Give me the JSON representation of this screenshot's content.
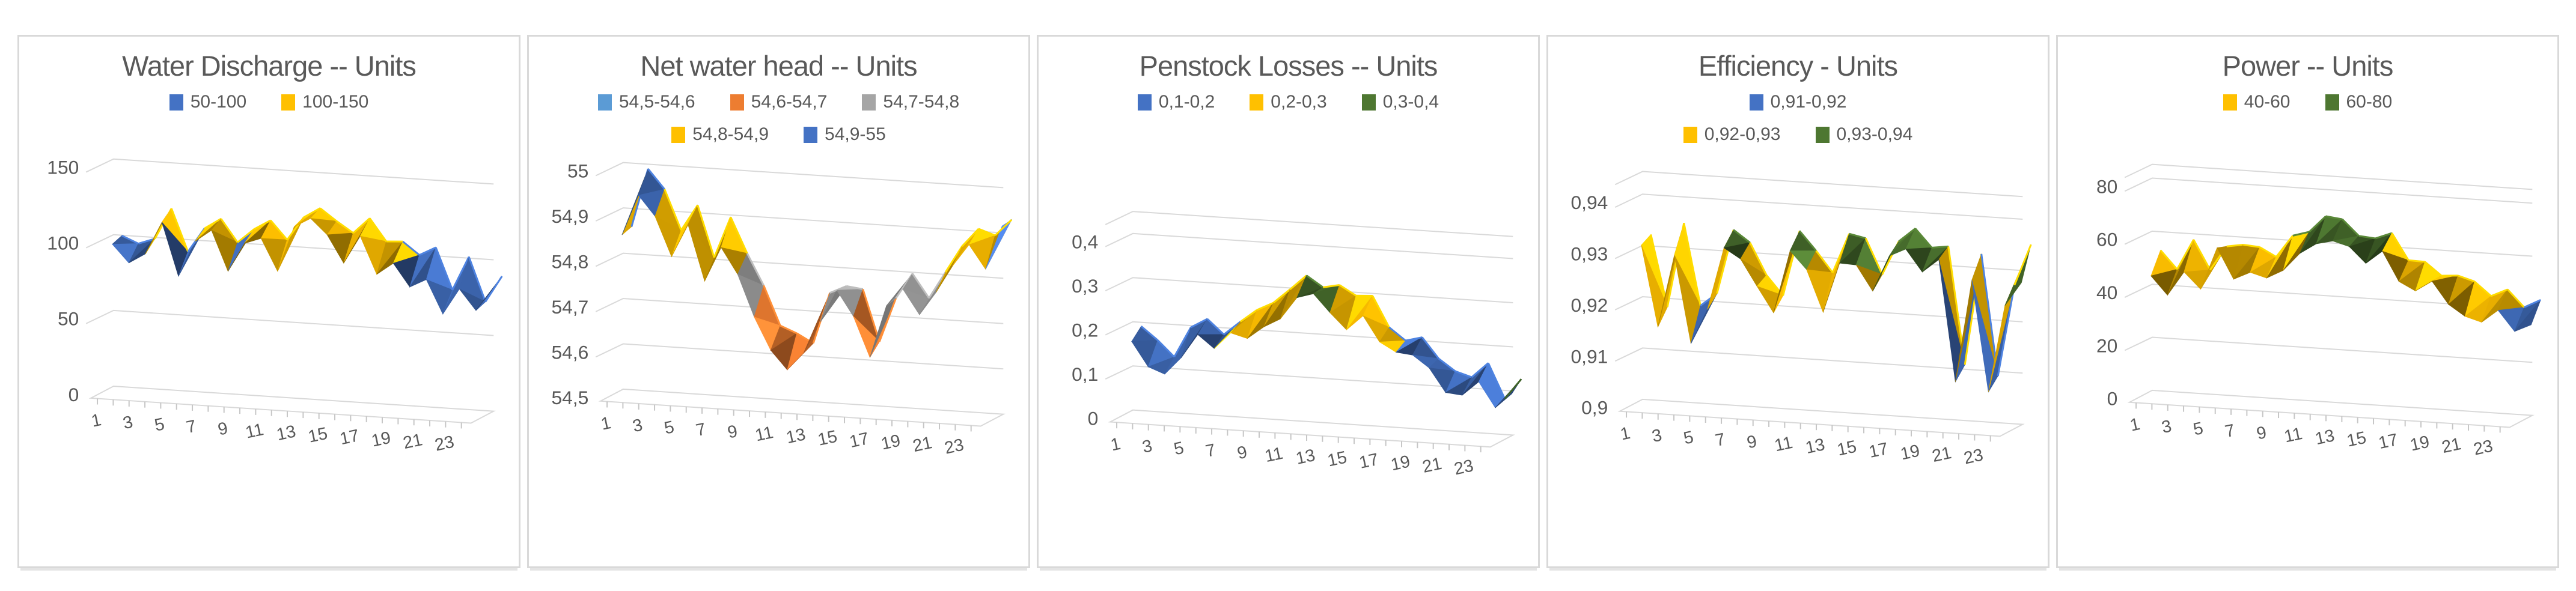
{
  "page": {
    "background": "#ffffff",
    "panel_border_color": "#d9d9d9",
    "text_color": "#595959",
    "grid_color": "#d9d9d9",
    "axis_color": "#c6c6c6"
  },
  "chart_data": [
    {
      "type": "area",
      "subtype": "3d-surface-ribbon",
      "title": "Water Discharge -- Units",
      "x": [
        1,
        2,
        3,
        4,
        5,
        6,
        7,
        8,
        9,
        10,
        11,
        12,
        13,
        14,
        15,
        16,
        17,
        18,
        19,
        20,
        21,
        22,
        23,
        24
      ],
      "x_tick_labels": [
        "1",
        "3",
        "5",
        "7",
        "9",
        "11",
        "13",
        "15",
        "17",
        "19",
        "21",
        "23"
      ],
      "values": [
        100,
        90,
        96,
        114,
        91,
        105,
        112,
        96,
        111,
        118,
        96,
        121,
        128,
        120,
        102,
        114,
        101,
        108,
        95,
        99,
        78,
        90,
        72,
        87
      ],
      "y_ticks": [
        {
          "label": "150",
          "value": 150
        },
        {
          "label": "100",
          "value": 100
        },
        {
          "label": "50",
          "value": 50
        },
        {
          "label": "0",
          "value": 0
        }
      ],
      "ylim": [
        0,
        150
      ],
      "grid": true,
      "legend_position": "top",
      "legend_rows": [
        [
          {
            "label": "50-100",
            "color": "#4472C4",
            "range": [
              50,
              100
            ]
          },
          {
            "label": "100-150",
            "color": "#FFC000",
            "range": [
              100,
              150
            ]
          }
        ]
      ],
      "hidden_bands": []
    },
    {
      "type": "area",
      "subtype": "3d-surface-ribbon",
      "title": "Net water head -- Units",
      "x": [
        1,
        2,
        3,
        4,
        5,
        6,
        7,
        8,
        9,
        10,
        11,
        12,
        13,
        14,
        15,
        16,
        17,
        18,
        19,
        20,
        21,
        22,
        23,
        24
      ],
      "x_tick_labels": [
        "1",
        "3",
        "5",
        "7",
        "9",
        "11",
        "13",
        "15",
        "17",
        "19",
        "21",
        "23"
      ],
      "values": [
        54.86,
        54.96,
        54.91,
        54.85,
        54.89,
        54.8,
        54.86,
        54.81,
        54.73,
        54.65,
        54.62,
        54.63,
        54.71,
        54.76,
        54.72,
        54.63,
        54.74,
        54.79,
        54.72,
        54.8,
        54.85,
        54.9,
        54.86,
        54.93
      ],
      "y_ticks": [
        {
          "label": "55",
          "value": 55
        },
        {
          "label": "54,9",
          "value": 54.9
        },
        {
          "label": "54,8",
          "value": 54.8
        },
        {
          "label": "54,7",
          "value": 54.7
        },
        {
          "label": "54,6",
          "value": 54.6
        },
        {
          "label": "54,5",
          "value": 54.5
        }
      ],
      "ylim": [
        54.5,
        55
      ],
      "grid": true,
      "legend_position": "top",
      "legend_rows": [
        [
          {
            "label": "54,5-54,6",
            "color": "#5B9BD5",
            "range": [
              54.5,
              54.6
            ]
          },
          {
            "label": "54,6-54,7",
            "color": "#ED7D31",
            "range": [
              54.6,
              54.7
            ]
          },
          {
            "label": "54,7-54,8",
            "color": "#A5A5A5",
            "range": [
              54.7,
              54.8
            ]
          }
        ],
        [
          {
            "label": "54,8-54,9",
            "color": "#FFC000",
            "range": [
              54.8,
              54.9
            ]
          },
          {
            "label": "54,9-55",
            "color": "#4472C4",
            "range": [
              54.9,
              55
            ]
          }
        ]
      ],
      "hidden_bands": []
    },
    {
      "type": "area",
      "subtype": "3d-surface-ribbon",
      "title": "Penstock Losses -- Units",
      "x": [
        1,
        2,
        3,
        4,
        5,
        6,
        7,
        8,
        9,
        10,
        11,
        12,
        13,
        14,
        15,
        16,
        17,
        18,
        19,
        20,
        21,
        22,
        23,
        24
      ],
      "x_tick_labels": [
        "1",
        "3",
        "5",
        "7",
        "9",
        "11",
        "13",
        "15",
        "17",
        "19",
        "21",
        "23"
      ],
      "values": [
        0.17,
        0.15,
        0.13,
        0.18,
        0.2,
        0.17,
        0.21,
        0.22,
        0.24,
        0.27,
        0.32,
        0.31,
        0.29,
        0.26,
        0.27,
        0.22,
        0.2,
        0.21,
        0.16,
        0.14,
        0.11,
        0.13,
        0.08,
        0.12
      ],
      "y_ticks": [
        {
          "label": "0,4",
          "value": 0.4
        },
        {
          "label": "0,3",
          "value": 0.3
        },
        {
          "label": "0,2",
          "value": 0.2
        },
        {
          "label": "0,1",
          "value": 0.1
        },
        {
          "label": "0",
          "value": 0
        }
      ],
      "ylim": [
        0,
        0.45
      ],
      "grid": true,
      "legend_position": "top",
      "legend_rows": [
        [
          {
            "label": "0,1-0,2",
            "color": "#4472C4",
            "range": [
              0.1,
              0.2
            ]
          },
          {
            "label": "0,2-0,3",
            "color": "#FFC000",
            "range": [
              0.2,
              0.3
            ]
          },
          {
            "label": "0,3-0,4",
            "color": "#4E7731",
            "range": [
              0.3,
              0.4
            ]
          }
        ]
      ],
      "hidden_bands": [
        {
          "color": "#375623",
          "range": [
            0,
            0.1
          ]
        }
      ]
    },
    {
      "type": "area",
      "subtype": "3d-surface-ribbon",
      "title": "Efficiency - Units",
      "x": [
        1,
        2,
        3,
        4,
        5,
        6,
        7,
        8,
        9,
        10,
        11,
        12,
        13,
        14,
        15,
        16,
        17,
        18,
        19,
        20,
        21,
        22,
        23,
        24
      ],
      "x_tick_labels": [
        "1",
        "3",
        "5",
        "7",
        "9",
        "11",
        "13",
        "15",
        "17",
        "19",
        "21",
        "23"
      ],
      "values": [
        0.931,
        0.917,
        0.933,
        0.916,
        0.922,
        0.934,
        0.932,
        0.926,
        0.922,
        0.933,
        0.93,
        0.924,
        0.934,
        0.932,
        0.928,
        0.933,
        0.934,
        0.931,
        0.933,
        0.911,
        0.93,
        0.909,
        0.926,
        0.932
      ],
      "y_ticks": [
        {
          "label": "0,94",
          "value": 0.94
        },
        {
          "label": "0,93",
          "value": 0.93
        },
        {
          "label": "0,92",
          "value": 0.92
        },
        {
          "label": "0,91",
          "value": 0.91
        },
        {
          "label": "0,9",
          "value": 0.9
        }
      ],
      "ylim": [
        0.9,
        0.945
      ],
      "grid": true,
      "legend_position": "top",
      "legend_rows": [
        [
          {
            "label": "0,91-0,92",
            "color": "#4472C4",
            "range": [
              0.91,
              0.92
            ]
          }
        ],
        [
          {
            "label": "0,92-0,93",
            "color": "#FFC000",
            "range": [
              0.92,
              0.93
            ]
          },
          {
            "label": "0,93-0,94",
            "color": "#4E7731",
            "range": [
              0.93,
              0.94
            ]
          }
        ]
      ],
      "hidden_bands": []
    },
    {
      "type": "area",
      "subtype": "3d-surface-ribbon",
      "title": "Power -- Units",
      "x": [
        1,
        2,
        3,
        4,
        5,
        6,
        7,
        8,
        9,
        10,
        11,
        12,
        13,
        14,
        15,
        16,
        17,
        18,
        19,
        20,
        21,
        22,
        23,
        24
      ],
      "x_tick_labels": [
        "1",
        "3",
        "5",
        "7",
        "9",
        "11",
        "13",
        "15",
        "17",
        "19",
        "21",
        "23"
      ],
      "values": [
        50,
        42,
        55,
        47,
        57,
        51,
        55,
        49,
        58,
        62,
        66,
        63,
        64,
        60,
        62,
        55,
        52,
        50,
        47,
        44,
        38,
        45,
        36,
        43
      ],
      "y_ticks": [
        {
          "label": "80",
          "value": 80
        },
        {
          "label": "60",
          "value": 60
        },
        {
          "label": "40",
          "value": 40
        },
        {
          "label": "20",
          "value": 20
        },
        {
          "label": "0",
          "value": 0
        }
      ],
      "ylim": [
        0,
        90
      ],
      "grid": true,
      "legend_position": "top",
      "legend_rows": [
        [
          {
            "label": "40-60",
            "color": "#FFC000",
            "range": [
              40,
              60
            ]
          },
          {
            "label": "60-80",
            "color": "#4E7731",
            "range": [
              60,
              80
            ]
          }
        ]
      ],
      "hidden_bands": [
        {
          "color": "#4472C4",
          "range": [
            20,
            40
          ]
        }
      ]
    }
  ]
}
